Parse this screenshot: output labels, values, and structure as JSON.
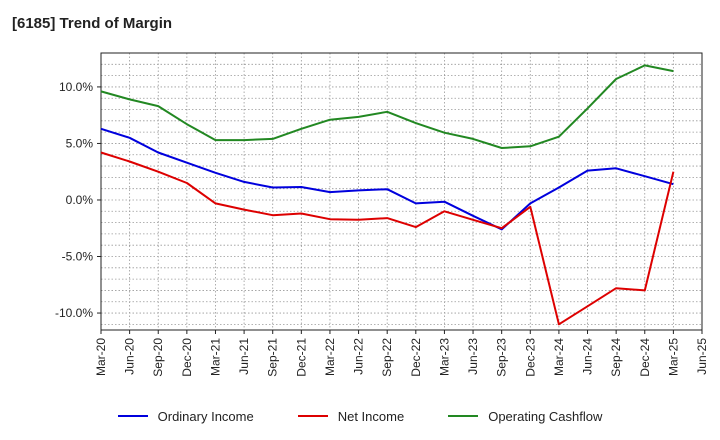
{
  "chart_data": {
    "type": "line",
    "title": "[6185]  Trend of Margin",
    "xlabel": "",
    "ylabel": "",
    "x": [
      "Mar-20",
      "Jun-20",
      "Sep-20",
      "Dec-20",
      "Mar-21",
      "Jun-21",
      "Sep-21",
      "Dec-21",
      "Mar-22",
      "Jun-22",
      "Sep-22",
      "Dec-22",
      "Mar-23",
      "Jun-23",
      "Sep-23",
      "Dec-23",
      "Mar-24",
      "Jun-24",
      "Sep-24",
      "Dec-24",
      "Mar-25",
      "Jun-25"
    ],
    "ylim": [
      -11.5,
      13.0
    ],
    "yticks": [
      10,
      5,
      0,
      -5,
      -10
    ],
    "ytick_labels": [
      "10.0%",
      "5.0%",
      "0.0%",
      "-5.0%",
      "-10.0%"
    ],
    "grid": true,
    "legend_position": "bottom",
    "series": [
      {
        "name": "Ordinary Income",
        "color": "#0000dd",
        "values": [
          6.3,
          5.5,
          4.2,
          3.3,
          2.4,
          1.6,
          1.1,
          1.15,
          0.7,
          0.85,
          0.95,
          -0.3,
          -0.15,
          -1.4,
          -2.6,
          -0.3,
          1.1,
          2.6,
          2.8,
          2.1,
          1.4,
          null
        ]
      },
      {
        "name": "Net Income",
        "color": "#dd0000",
        "values": [
          4.2,
          3.4,
          2.5,
          1.5,
          -0.3,
          -0.85,
          -1.35,
          -1.2,
          -1.7,
          -1.75,
          -1.6,
          -2.4,
          -1.0,
          -1.75,
          -2.5,
          -0.6,
          -11.0,
          -9.4,
          -7.8,
          -8.0,
          2.5,
          null
        ]
      },
      {
        "name": "Operating Cashflow",
        "color": "#228822",
        "values": [
          9.6,
          8.9,
          8.3,
          6.7,
          5.3,
          5.3,
          5.4,
          6.3,
          7.1,
          7.35,
          7.8,
          6.8,
          5.95,
          5.4,
          4.6,
          4.75,
          5.6,
          8.1,
          10.7,
          11.9,
          11.4,
          null
        ]
      }
    ]
  }
}
